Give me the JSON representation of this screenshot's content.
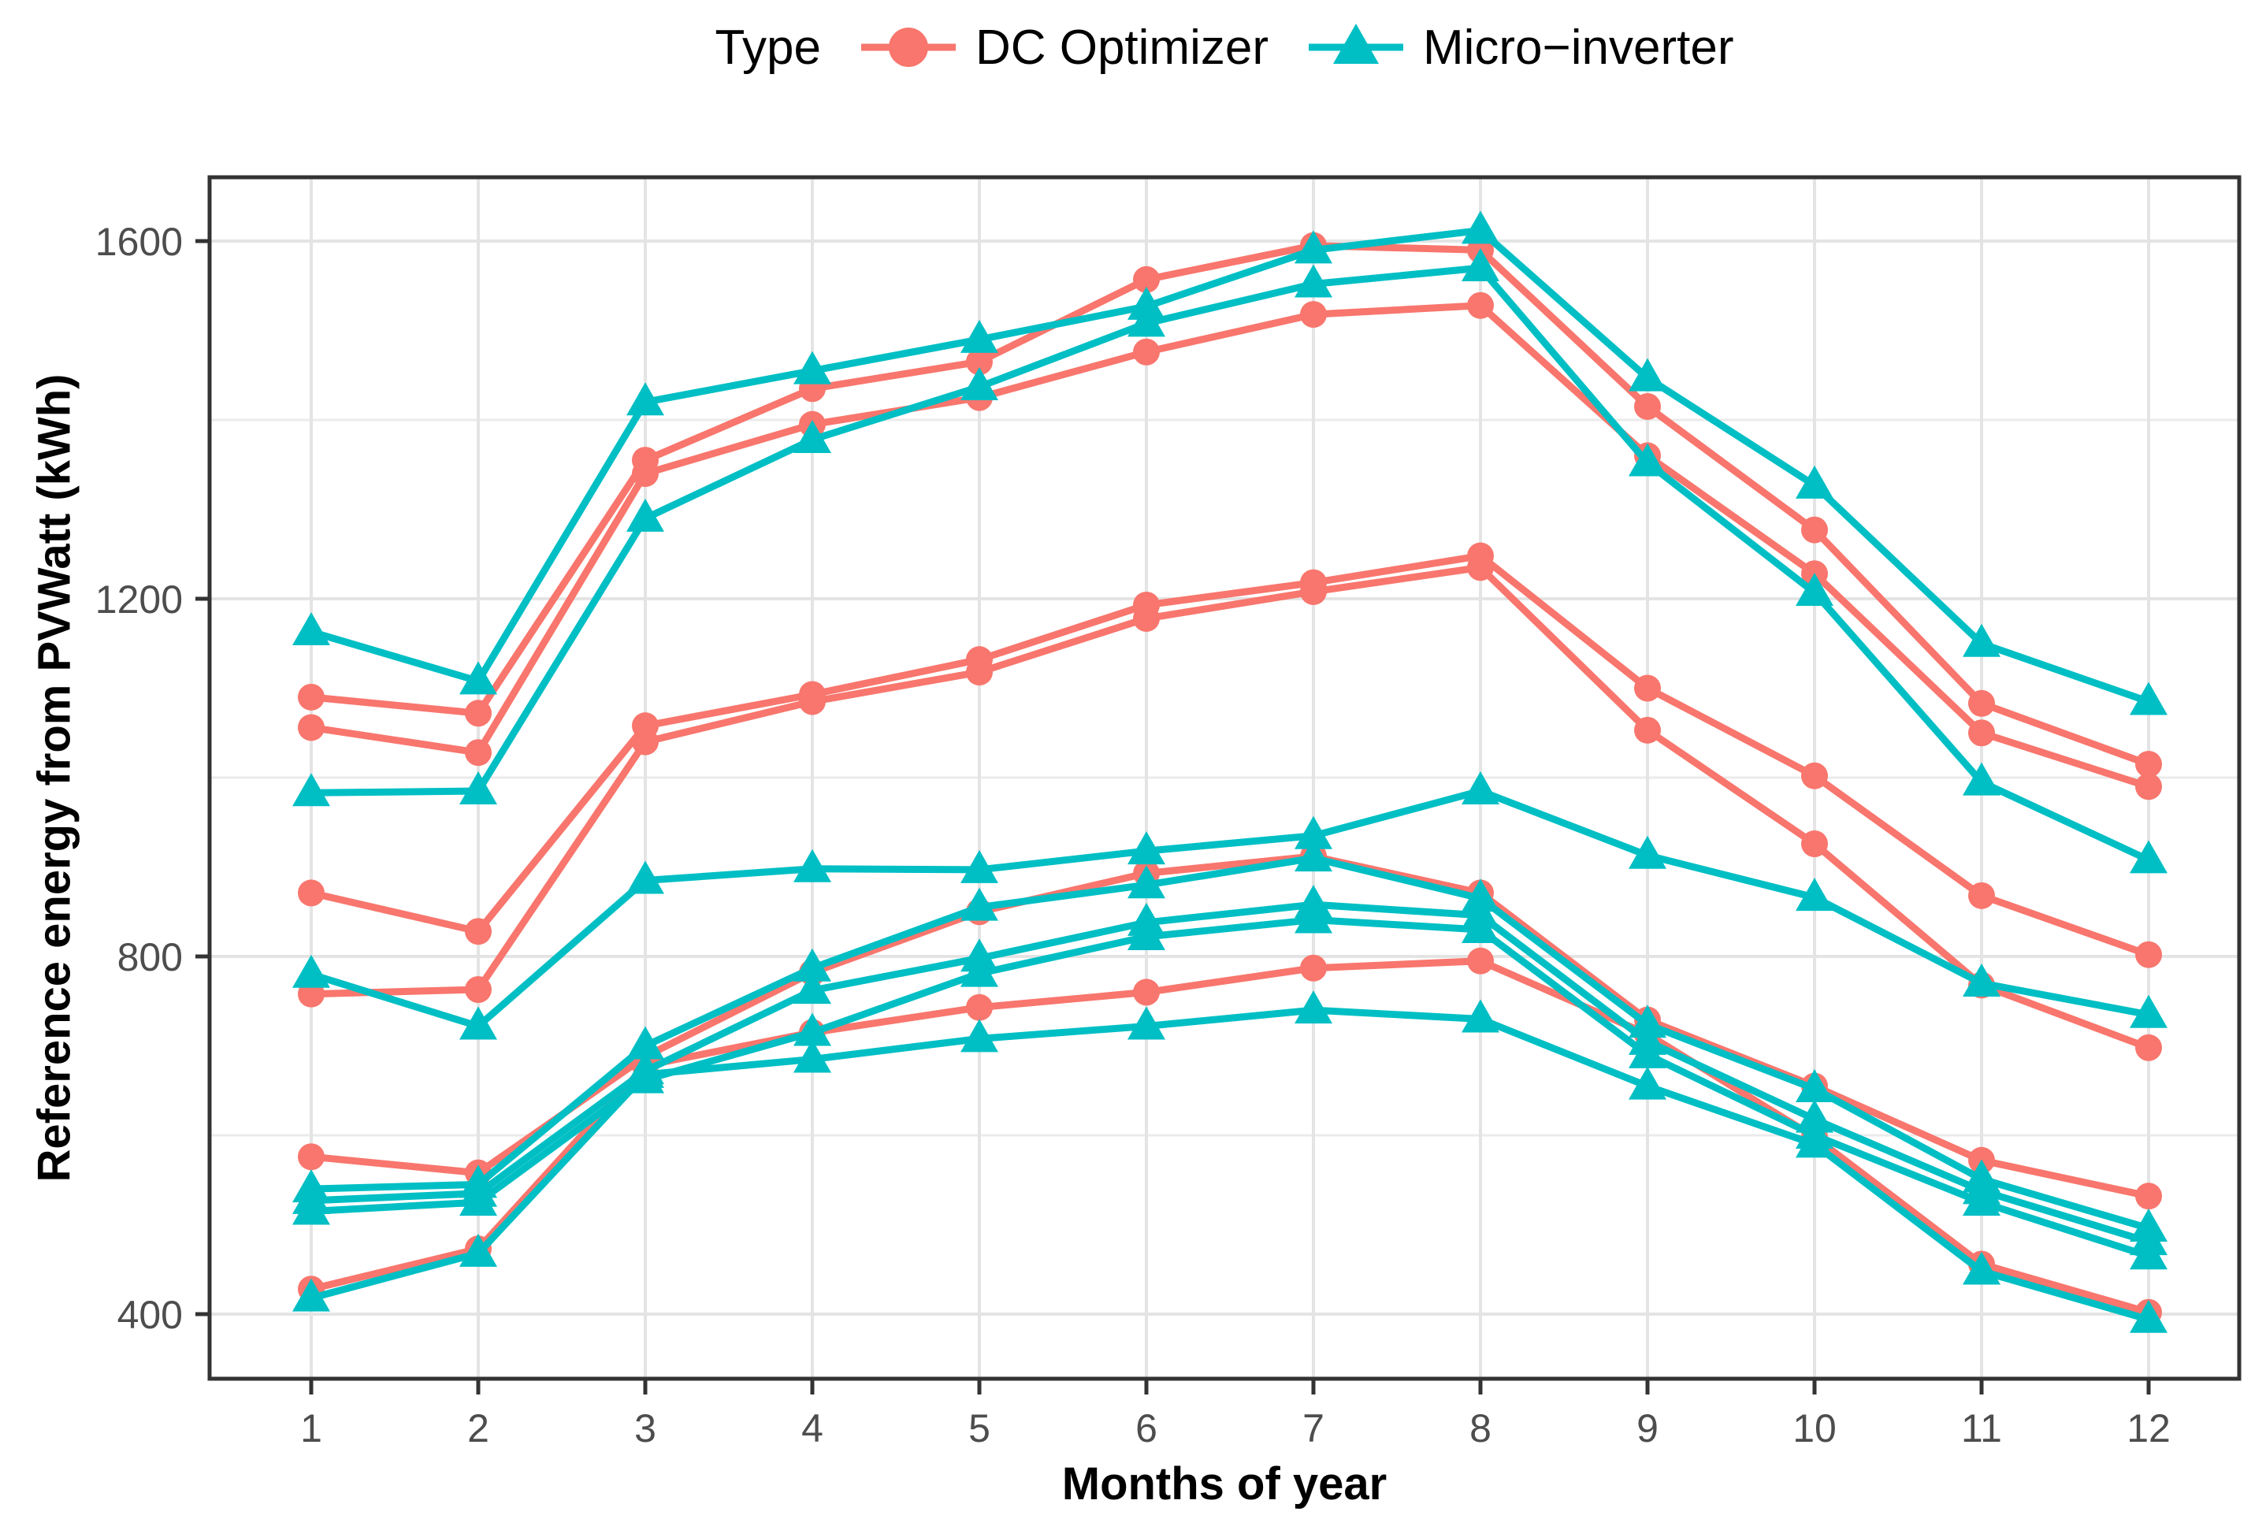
{
  "legend": {
    "title": "Type",
    "items": [
      {
        "id": "dc",
        "label": "DC Optimizer",
        "marker": "circle-icon",
        "color": "#F8766D"
      },
      {
        "id": "mi",
        "label": "Micro−inverter",
        "marker": "triangle-icon",
        "color": "#00BFC4"
      }
    ]
  },
  "axes": {
    "x": {
      "title": "Months of year",
      "tick_values": [
        1,
        2,
        3,
        4,
        5,
        6,
        7,
        8,
        9,
        10,
        11,
        12
      ],
      "tick_labels": [
        "1",
        "2",
        "3",
        "4",
        "5",
        "6",
        "7",
        "8",
        "9",
        "10",
        "11",
        "12"
      ]
    },
    "y": {
      "title": "Reference energy from PVWatt (kWh)",
      "tick_values": [
        400,
        800,
        1200,
        1600
      ],
      "tick_labels": [
        "400",
        "800",
        "1200",
        "1600"
      ],
      "minor_tick_values": [
        600,
        1000,
        1400
      ]
    }
  },
  "style": {
    "dc_color": "#F8766D",
    "mi_color": "#00BFC4",
    "grid_major_color": "#E4E4E4",
    "grid_minor_color": "#EBEBEB",
    "panel_border_color": "#333333",
    "tick_color": "#333333",
    "tick_label_color": "#4D4D4D",
    "panel_background": "#FFFFFF"
  },
  "chart_data": {
    "type": "line",
    "title": "",
    "xlabel": "Months of year",
    "ylabel": "Reference energy from PVWatt (kWh)",
    "x": [
      1,
      2,
      3,
      4,
      5,
      6,
      7,
      8,
      9,
      10,
      11,
      12
    ],
    "xlim": [
      0.45,
      12.55
    ],
    "ylim": [
      330,
      1671
    ],
    "grid": true,
    "legend_position": "top",
    "groups": [
      "DC Optimizer",
      "Micro−inverter"
    ],
    "series": [
      {
        "name": "dc_optimizer_1",
        "group": "DC Optimizer",
        "marker": "circle",
        "color": "#F8766D",
        "values": [
          1090,
          1072,
          1355,
          1435,
          1465,
          1557,
          1595,
          1590,
          1415,
          1277,
          1083,
          1015
        ]
      },
      {
        "name": "dc_optimizer_2",
        "group": "DC Optimizer",
        "marker": "circle",
        "color": "#F8766D",
        "values": [
          1056,
          1028,
          1340,
          1395,
          1425,
          1476,
          1518,
          1528,
          1360,
          1228,
          1050,
          990
        ]
      },
      {
        "name": "dc_optimizer_3",
        "group": "DC Optimizer",
        "marker": "circle",
        "color": "#F8766D",
        "values": [
          871,
          828,
          1058,
          1093,
          1132,
          1193,
          1218,
          1248,
          1100,
          1002,
          868,
          802
        ]
      },
      {
        "name": "dc_optimizer_4",
        "group": "DC Optimizer",
        "marker": "circle",
        "color": "#F8766D",
        "values": [
          758,
          763,
          1040,
          1085,
          1118,
          1178,
          1208,
          1235,
          1053,
          926,
          768,
          698
        ]
      },
      {
        "name": "dc_optimizer_5",
        "group": "DC Optimizer",
        "marker": "circle",
        "color": "#F8766D",
        "values": [
          576,
          558,
          688,
          782,
          850,
          893,
          912,
          871,
          729,
          655,
          572,
          532
        ]
      },
      {
        "name": "dc_optimizer_6",
        "group": "DC Optimizer",
        "marker": "circle",
        "color": "#F8766D",
        "values": [
          428,
          473,
          678,
          715,
          743,
          760,
          787,
          795,
          713,
          598,
          456,
          402
        ]
      },
      {
        "name": "micro_inverter_1",
        "group": "Micro−inverter",
        "marker": "triangle",
        "color": "#00BFC4",
        "values": [
          1163,
          1108,
          1420,
          1455,
          1490,
          1527,
          1590,
          1612,
          1447,
          1327,
          1150,
          1085
        ]
      },
      {
        "name": "micro_inverter_2",
        "group": "Micro−inverter",
        "marker": "triangle",
        "color": "#00BFC4",
        "values": [
          983,
          985,
          1290,
          1378,
          1437,
          1508,
          1552,
          1570,
          1352,
          1207,
          995,
          908
        ]
      },
      {
        "name": "micro_inverter_3",
        "group": "Micro−inverter",
        "marker": "triangle",
        "color": "#00BFC4",
        "values": [
          780,
          722,
          885,
          898,
          897,
          918,
          935,
          985,
          913,
          866,
          770,
          735
        ]
      },
      {
        "name": "micro_inverter_4",
        "group": "Micro−inverter",
        "marker": "triangle",
        "color": "#00BFC4",
        "values": [
          540,
          545,
          700,
          787,
          855,
          880,
          910,
          865,
          724,
          652,
          551,
          496
        ]
      },
      {
        "name": "micro_inverter_5",
        "group": "Micro−inverter",
        "marker": "triangle",
        "color": "#00BFC4",
        "values": [
          527,
          535,
          672,
          762,
          798,
          838,
          858,
          846,
          705,
          618,
          538,
          481
        ]
      },
      {
        "name": "micro_inverter_6",
        "group": "Micro−inverter",
        "marker": "triangle",
        "color": "#00BFC4",
        "values": [
          515,
          525,
          662,
          715,
          781,
          822,
          841,
          830,
          690,
          600,
          525,
          465
        ]
      },
      {
        "name": "micro_inverter_7",
        "group": "Micro−inverter",
        "marker": "triangle",
        "color": "#00BFC4",
        "values": [
          418,
          468,
          668,
          685,
          708,
          722,
          740,
          730,
          655,
          590,
          448,
          394
        ]
      }
    ]
  }
}
